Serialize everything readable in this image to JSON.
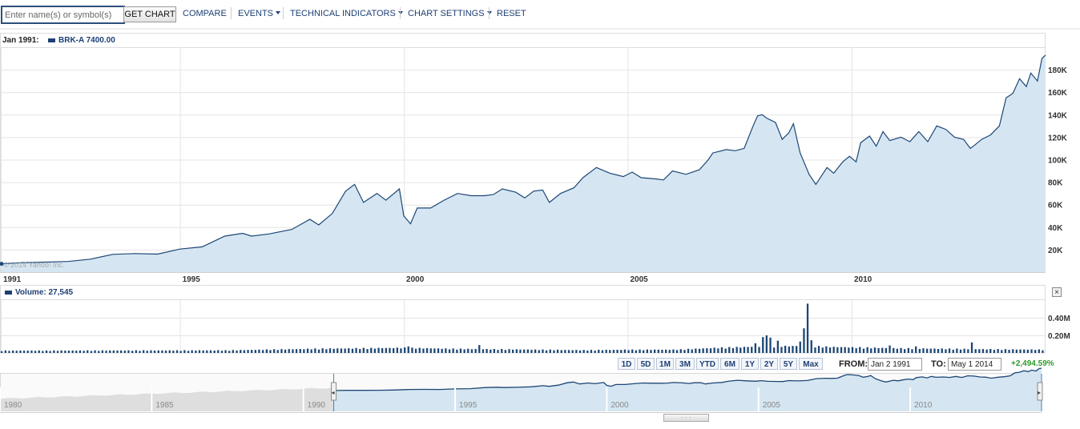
{
  "toolbar": {
    "search_placeholder": "Enter name(s) or symbol(s)",
    "get_chart_label": "GET CHART",
    "compare_label": "COMPARE",
    "events_label": "EVENTS",
    "technical_indicators_label": "TECHNICAL INDICATORS",
    "chart_settings_label": "CHART SETTINGS",
    "reset_label": "RESET"
  },
  "info": {
    "date": "Jan 1991:",
    "price_label": "BRK-A 7400.00",
    "watermark": "© 2014 Yahoo! Inc.",
    "volume_label": "Volume: 27,545"
  },
  "range_buttons": [
    "1D",
    "5D",
    "1M",
    "3M",
    "YTD",
    "6M",
    "1Y",
    "2Y",
    "5Y",
    "Max"
  ],
  "dates": {
    "from_label": "FROM:",
    "from_value": "Jan 2 1991",
    "to_label": "TO:",
    "to_value": "May 1 2014",
    "change": "+2,494.59%"
  },
  "navigator": {
    "tick_labels": [
      "1980",
      "1985",
      "1990",
      "1995",
      "2000",
      "2005",
      "2010"
    ],
    "x_start": 1980,
    "selection": [
      1991,
      2014.33
    ]
  },
  "colors": {
    "line": "#1d4675",
    "fill": "#d5e6f2",
    "accent": "#1d3f74",
    "positive": "#2e9a2e"
  },
  "chart_data": [
    {
      "type": "area",
      "series": [
        {
          "name": "BRK-A"
        }
      ],
      "x_unit": "year",
      "xlim": [
        1991,
        2014.33
      ],
      "ylim": [
        0,
        200000
      ],
      "x_ticks": [
        1991,
        1995,
        2000,
        2005,
        2010
      ],
      "x_tick_labels": [
        "1991",
        "1995",
        "2000",
        "2005",
        "2010"
      ],
      "y_ticks": [
        20000,
        40000,
        60000,
        80000,
        100000,
        120000,
        140000,
        160000,
        180000
      ],
      "y_tick_labels": [
        "20K",
        "40K",
        "60K",
        "80K",
        "100K",
        "120K",
        "140K",
        "160K",
        "180K"
      ],
      "grid": true,
      "points": [
        [
          1991.0,
          7400
        ],
        [
          1991.5,
          8500
        ],
        [
          1992.0,
          8900
        ],
        [
          1992.5,
          9500
        ],
        [
          1993.0,
          11500
        ],
        [
          1993.5,
          15800
        ],
        [
          1994.0,
          16500
        ],
        [
          1994.5,
          16000
        ],
        [
          1995.0,
          20500
        ],
        [
          1995.5,
          22500
        ],
        [
          1996.0,
          32000
        ],
        [
          1996.4,
          34500
        ],
        [
          1996.6,
          32000
        ],
        [
          1997.0,
          34000
        ],
        [
          1997.5,
          38000
        ],
        [
          1997.9,
          47000
        ],
        [
          1998.1,
          42000
        ],
        [
          1998.4,
          52000
        ],
        [
          1998.7,
          72000
        ],
        [
          1998.9,
          78000
        ],
        [
          1999.1,
          62000
        ],
        [
          1999.4,
          70000
        ],
        [
          1999.6,
          64000
        ],
        [
          1999.9,
          74000
        ],
        [
          2000.0,
          50000
        ],
        [
          2000.15,
          43000
        ],
        [
          2000.3,
          57000
        ],
        [
          2000.6,
          57000
        ],
        [
          2000.9,
          64000
        ],
        [
          2001.2,
          70000
        ],
        [
          2001.5,
          68000
        ],
        [
          2001.8,
          68000
        ],
        [
          2002.0,
          69000
        ],
        [
          2002.2,
          74000
        ],
        [
          2002.5,
          71000
        ],
        [
          2002.7,
          66000
        ],
        [
          2002.9,
          72000
        ],
        [
          2003.1,
          73000
        ],
        [
          2003.25,
          62000
        ],
        [
          2003.5,
          70000
        ],
        [
          2003.8,
          75000
        ],
        [
          2004.0,
          84000
        ],
        [
          2004.3,
          93000
        ],
        [
          2004.6,
          88000
        ],
        [
          2004.9,
          85000
        ],
        [
          2005.1,
          89000
        ],
        [
          2005.3,
          84000
        ],
        [
          2005.6,
          83000
        ],
        [
          2005.8,
          82000
        ],
        [
          2006.0,
          90000
        ],
        [
          2006.3,
          87000
        ],
        [
          2006.6,
          91000
        ],
        [
          2006.8,
          100000
        ],
        [
          2006.9,
          106000
        ],
        [
          2007.2,
          109000
        ],
        [
          2007.4,
          108000
        ],
        [
          2007.6,
          110000
        ],
        [
          2007.8,
          130000
        ],
        [
          2007.9,
          139000
        ],
        [
          2008.0,
          140000
        ],
        [
          2008.1,
          137000
        ],
        [
          2008.3,
          133000
        ],
        [
          2008.45,
          118000
        ],
        [
          2008.6,
          124000
        ],
        [
          2008.7,
          132000
        ],
        [
          2008.85,
          106000
        ],
        [
          2009.05,
          87000
        ],
        [
          2009.2,
          78000
        ],
        [
          2009.45,
          93000
        ],
        [
          2009.6,
          88000
        ],
        [
          2009.8,
          98000
        ],
        [
          2009.95,
          103000
        ],
        [
          2010.1,
          98000
        ],
        [
          2010.2,
          115000
        ],
        [
          2010.4,
          121000
        ],
        [
          2010.55,
          112000
        ],
        [
          2010.7,
          125000
        ],
        [
          2010.85,
          117000
        ],
        [
          2011.1,
          120000
        ],
        [
          2011.3,
          116000
        ],
        [
          2011.5,
          125000
        ],
        [
          2011.7,
          116000
        ],
        [
          2011.9,
          130000
        ],
        [
          2012.1,
          127000
        ],
        [
          2012.3,
          120000
        ],
        [
          2012.5,
          118000
        ],
        [
          2012.65,
          110000
        ],
        [
          2012.75,
          113000
        ],
        [
          2012.9,
          118000
        ],
        [
          2013.1,
          122000
        ],
        [
          2013.3,
          130000
        ],
        [
          2013.45,
          155000
        ],
        [
          2013.6,
          159000
        ],
        [
          2013.75,
          172000
        ],
        [
          2013.9,
          165000
        ],
        [
          2014.0,
          177000
        ],
        [
          2014.15,
          170000
        ],
        [
          2014.25,
          190000
        ],
        [
          2014.33,
          193000
        ]
      ]
    },
    {
      "type": "bar",
      "series": [
        {
          "name": "Volume"
        }
      ],
      "x_unit": "year",
      "xlim": [
        1991,
        2014.33
      ],
      "ylim": [
        0,
        600000
      ],
      "y_ticks": [
        200000,
        400000
      ],
      "y_tick_labels": [
        "0.20M",
        "0.40M"
      ],
      "grid": true,
      "profile": [
        [
          1991,
          25000
        ],
        [
          1996,
          28000
        ],
        [
          1998,
          45000
        ],
        [
          1999,
          50000
        ],
        [
          2000,
          55000
        ],
        [
          2001,
          45000
        ],
        [
          2002,
          40000
        ],
        [
          2003,
          35000
        ],
        [
          2004,
          30000
        ],
        [
          2005,
          35000
        ],
        [
          2006,
          35000
        ],
        [
          2007,
          55000
        ],
        [
          2008,
          70000
        ],
        [
          2008.9,
          75000
        ],
        [
          2009.5,
          65000
        ],
        [
          2010,
          60000
        ],
        [
          2011,
          50000
        ],
        [
          2012,
          45000
        ],
        [
          2013,
          40000
        ],
        [
          2014.33,
          35000
        ]
      ],
      "spikes": [
        [
          2000.05,
          75000
        ],
        [
          2001.65,
          90000
        ],
        [
          2007.85,
          110000
        ],
        [
          2008.0,
          180000
        ],
        [
          2008.1,
          200000
        ],
        [
          2008.2,
          175000
        ],
        [
          2008.3,
          140000
        ],
        [
          2008.8,
          130000
        ],
        [
          2008.9,
          280000
        ],
        [
          2009.0,
          560000
        ],
        [
          2009.1,
          145000
        ],
        [
          2010.85,
          85000
        ],
        [
          2011.4,
          75000
        ],
        [
          2012.65,
          120000
        ]
      ]
    }
  ]
}
